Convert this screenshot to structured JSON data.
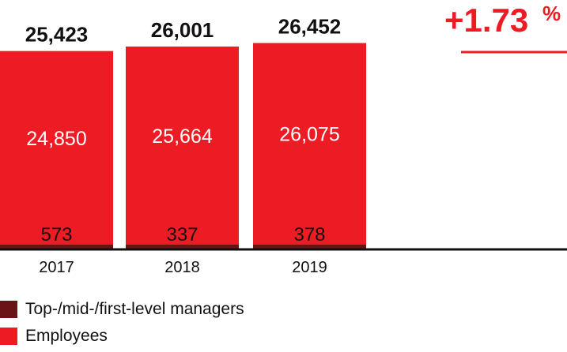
{
  "chart_data": {
    "type": "bar",
    "stacked": true,
    "categories": [
      "2017",
      "2018",
      "2019"
    ],
    "series": [
      {
        "name": "Top-/mid-/first-level managers",
        "values": [
          573,
          337,
          378
        ],
        "color": "#6b1217"
      },
      {
        "name": "Employees",
        "values": [
          24850,
          25664,
          26075
        ],
        "color": "#ed1c24"
      }
    ],
    "totals": [
      25423,
      26001,
      26452
    ],
    "total_labels": [
      "25,423",
      "26,001",
      "26,452"
    ],
    "value_labels": [
      [
        "573",
        "337",
        "378"
      ],
      [
        "24,850",
        "25,664",
        "26,075"
      ]
    ],
    "annotation": {
      "value": "+1.73",
      "suffix": "%"
    },
    "colors": {
      "accent": "#ed1c24",
      "dark": "#6b1217",
      "axis": "#111111"
    },
    "legend_position": "bottom-left",
    "grid": false
  }
}
